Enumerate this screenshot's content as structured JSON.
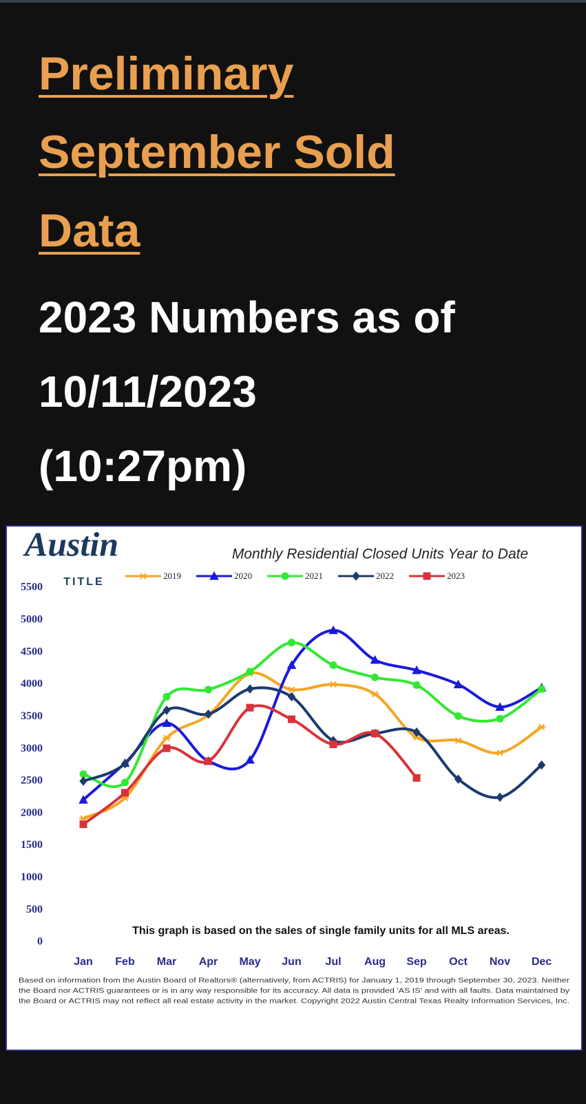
{
  "header": {
    "title_lines": [
      "Preliminary",
      "September Sold",
      "Data"
    ],
    "subtitle_lines": [
      "2023 Numbers as of",
      "10/11/2023",
      "(10:27pm)"
    ]
  },
  "logo": {
    "name": "Austin",
    "tag": "TITLE"
  },
  "chart_data": {
    "type": "line",
    "title": "Monthly Residential Closed Units Year to Date",
    "annotation": "This graph is based on the sales of single family units for all MLS areas.",
    "categories": [
      "Jan",
      "Feb",
      "Mar",
      "Apr",
      "May",
      "Jun",
      "Jul",
      "Aug",
      "Sep",
      "Oct",
      "Nov",
      "Dec"
    ],
    "series": [
      {
        "name": "2019",
        "color": "#f5a623",
        "marker": "star",
        "values": [
          1920,
          2240,
          3170,
          3525,
          4170,
          3920,
          4000,
          3850,
          3180,
          3130,
          2940,
          3340
        ]
      },
      {
        "name": "2020",
        "color": "#1a1adb",
        "marker": "triangle",
        "values": [
          2210,
          2780,
          3400,
          2810,
          2830,
          4300,
          4840,
          4380,
          4220,
          4000,
          3650,
          3950
        ]
      },
      {
        "name": "2021",
        "color": "#33e833",
        "marker": "circle",
        "values": [
          2610,
          2480,
          3810,
          3920,
          4200,
          4650,
          4300,
          4110,
          3990,
          3510,
          3470,
          3930
        ]
      },
      {
        "name": "2022",
        "color": "#1c3a6e",
        "marker": "diamond",
        "values": [
          2500,
          2770,
          3600,
          3540,
          3930,
          3810,
          3130,
          3240,
          3260,
          2530,
          2250,
          2750
        ]
      },
      {
        "name": "2023",
        "color": "#d9333a",
        "marker": "square",
        "values": [
          1830,
          2320,
          3010,
          2810,
          3640,
          3460,
          3070,
          3240,
          2550,
          null,
          null,
          null
        ]
      }
    ],
    "ylim": [
      0,
      5500
    ],
    "yticks": [
      0,
      500,
      1000,
      1500,
      2000,
      2500,
      3000,
      3500,
      4000,
      4500,
      5000,
      5500
    ],
    "footnote_lines": [
      "Based on information from the Austin Board of Realtors® (alternatively, from ACTRIS) for January 1, 2019 through September 30, 2023.  Neither",
      "the Board nor ACTRIS guarantees or is in any way responsible for its accuracy.  All data is provided 'AS IS' and with all faults.  Data maintained by",
      "the Board or ACTRIS may not reflect all real estate activity in the market.  Copyright 2022 Austin Central Texas Realty Information Services, Inc."
    ]
  }
}
